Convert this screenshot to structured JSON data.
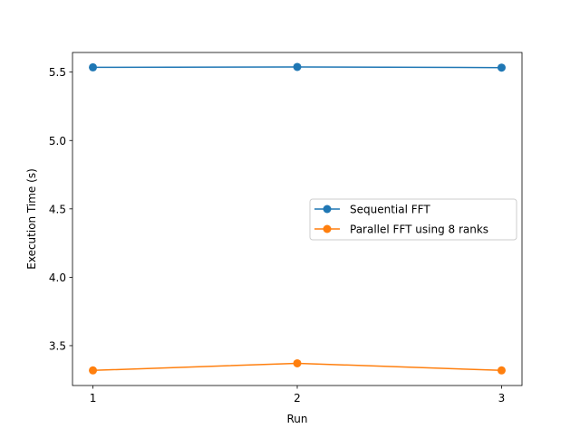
{
  "chart_data": {
    "type": "line",
    "title": "",
    "xlabel": "Run",
    "ylabel": "Execution Time (s)",
    "x": [
      1,
      2,
      3
    ],
    "x_ticks": [
      "1",
      "2",
      "3"
    ],
    "xlim": [
      0.9,
      3.1
    ],
    "y_ticks": [
      "3.5",
      "4.0",
      "4.5",
      "5.0",
      "5.5"
    ],
    "y_tick_values": [
      3.5,
      4.0,
      4.5,
      5.0,
      5.5
    ],
    "ylim": [
      3.2085,
      5.6435
    ],
    "grid": false,
    "legend_position": "center-right",
    "series": [
      {
        "name": "Sequential FFT",
        "color": "#1f77b4",
        "marker": "circle",
        "values": [
          5.535,
          5.538,
          5.533
        ]
      },
      {
        "name": "Parallel FFT using 8 ranks",
        "color": "#ff7f0e",
        "marker": "circle",
        "values": [
          3.319,
          3.371,
          3.319
        ]
      }
    ]
  }
}
